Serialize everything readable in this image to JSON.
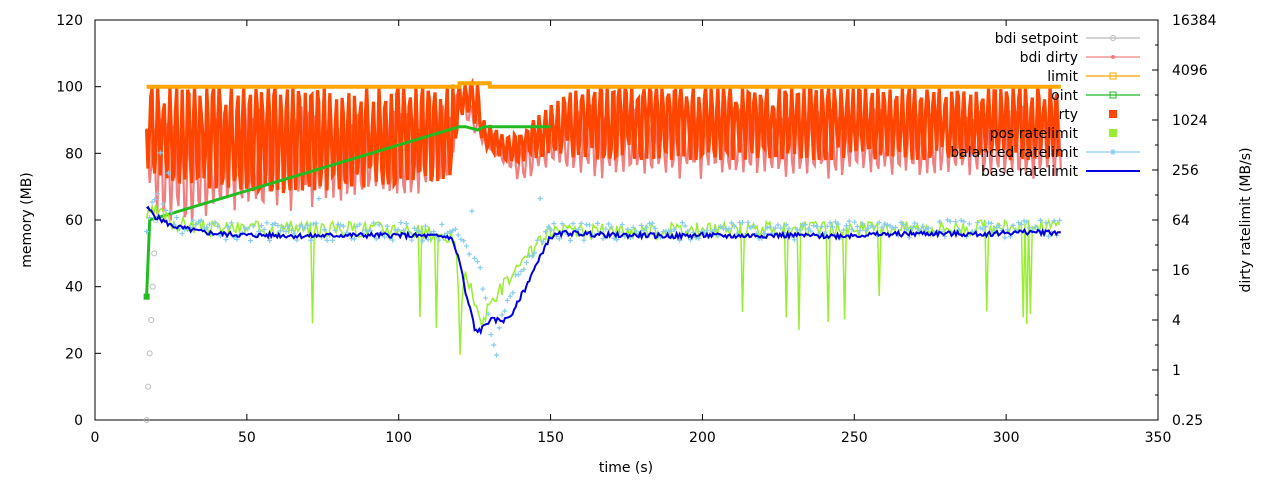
{
  "chart_data": {
    "type": "line",
    "xlabel": "time (s)",
    "ylabel": "memory (MB)",
    "y2label": "dirty ratelimit (MB/s)",
    "xlim": [
      0,
      350
    ],
    "ylim": [
      0,
      120
    ],
    "y2lim": [
      0.25,
      16384
    ],
    "y2scale": "log2",
    "x_ticks": [
      "0",
      "50",
      "100",
      "150",
      "200",
      "250",
      "300",
      "350"
    ],
    "y_ticks": [
      "0",
      "20",
      "40",
      "60",
      "80",
      "100",
      "120"
    ],
    "y2_ticks": [
      "0.25",
      "1",
      "4",
      "16",
      "64",
      "256",
      "1024",
      "4096",
      "16384"
    ],
    "legend_position": "top-right",
    "legend": [
      {
        "label": "bdi setpoint",
        "color": "#bbbbbb",
        "marker": "circle"
      },
      {
        "label": "bdi dirty",
        "color": "#f08080",
        "marker": "dot"
      },
      {
        "label": "limit",
        "color": "#ffa500",
        "marker": "square-open"
      },
      {
        "label": "setpoint",
        "color": "#22bb22",
        "marker": "square-open"
      },
      {
        "label": "dirty",
        "color": "#ff4500",
        "marker": "square-filled"
      },
      {
        "label": "pos ratelimit",
        "color": "#99ee33",
        "marker": "square-filled"
      },
      {
        "label": "balanced ratelimit",
        "color": "#88ccee",
        "marker": "star"
      },
      {
        "label": "base ratelimit",
        "color": "#0000dd",
        "marker": "line"
      }
    ],
    "legend_visible_labels": [
      "bdi setpoint",
      "bdi dirty",
      "limit",
      "oint",
      "rty",
      "pos ratelimit",
      "balanced ratelimit",
      "base ratelimit"
    ],
    "series": [
      {
        "name": "limit",
        "axis": "left",
        "x": [
          17,
          120,
          120,
          130,
          130,
          318
        ],
        "y": [
          100,
          100,
          101,
          101,
          100,
          100
        ]
      },
      {
        "name": "setpoint",
        "axis": "left",
        "x": [
          17,
          18,
          120,
          122,
          126,
          128,
          145,
          148,
          150
        ],
        "y": [
          37,
          60,
          88,
          88,
          87,
          88,
          88,
          88,
          88
        ]
      },
      {
        "name": "bdi setpoint",
        "axis": "left",
        "x": [
          17,
          17.5,
          18,
          18.5,
          19,
          19.5,
          20
        ],
        "y": [
          0,
          10,
          20,
          30,
          40,
          50,
          60
        ]
      },
      {
        "name": "base ratelimit",
        "axis": "right",
        "x": [
          17,
          20,
          25,
          30,
          35,
          40,
          50,
          60,
          70,
          80,
          90,
          100,
          110,
          117,
          120,
          122,
          125,
          127,
          130,
          135,
          138,
          142,
          146,
          150,
          155,
          160,
          170,
          180,
          190,
          200,
          210,
          220,
          230,
          240,
          250,
          260,
          270,
          280,
          290,
          300,
          310,
          318
        ],
        "y": [
          90,
          70,
          55,
          50,
          46,
          44,
          42,
          42,
          41,
          42,
          42,
          42,
          41,
          40,
          20,
          8,
          3,
          3,
          4,
          4,
          5,
          10,
          20,
          40,
          45,
          44,
          42,
          42,
          41,
          42,
          41,
          42,
          42,
          41,
          42,
          43,
          44,
          44,
          43,
          45,
          46,
          45
        ]
      },
      {
        "name": "dirty",
        "axis": "left",
        "band": {
          "x": [
            17,
            30,
            60,
            100,
            117,
            118,
            120,
            126,
            128,
            135,
            140,
            150,
            160,
            200,
            250,
            300,
            318
          ],
          "low": [
            75,
            70,
            68,
            70,
            72,
            78,
            92,
            88,
            82,
            78,
            77,
            80,
            78,
            78,
            78,
            78,
            78
          ],
          "high": [
            100,
            100,
            100,
            100,
            100,
            101,
            101,
            101,
            90,
            85,
            86,
            95,
            100,
            100,
            100,
            100,
            100
          ]
        }
      },
      {
        "name": "bdi dirty",
        "axis": "left",
        "band": {
          "x": [
            17,
            20,
            30,
            40,
            60,
            100,
            117,
            120,
            128,
            135,
            140,
            150,
            160,
            200,
            250,
            300,
            318
          ],
          "low": [
            70,
            60,
            55,
            60,
            62,
            65,
            70,
            92,
            82,
            75,
            70,
            76,
            72,
            72,
            72,
            72,
            72
          ],
          "high": [
            90,
            95,
            92,
            95,
            95,
            95,
            95,
            101,
            88,
            84,
            84,
            90,
            95,
            95,
            95,
            95,
            95
          ]
        }
      },
      {
        "name": "pos ratelimit",
        "axis": "right",
        "x": [
          17,
          20,
          25,
          30,
          40,
          50,
          100,
          118,
          120,
          122,
          126,
          128,
          132,
          136,
          140,
          145,
          150,
          200,
          250,
          300,
          318
        ],
        "y": [
          70,
          80,
          60,
          55,
          50,
          50,
          50,
          40,
          0.5,
          14,
          4,
          4,
          8,
          12,
          16,
          30,
          45,
          48,
          50,
          52,
          55
        ]
      },
      {
        "name": "balanced ratelimit",
        "axis": "right",
        "x": [
          17,
          20,
          25,
          30,
          40,
          50,
          100,
          118,
          122,
          126,
          128,
          130,
          132,
          136,
          140,
          145,
          150,
          200,
          250,
          300,
          318
        ],
        "y": [
          60,
          120,
          65,
          55,
          50,
          48,
          48,
          45,
          35,
          20,
          8,
          3,
          1.5,
          6,
          15,
          30,
          48,
          48,
          50,
          52,
          55
        ]
      }
    ]
  }
}
